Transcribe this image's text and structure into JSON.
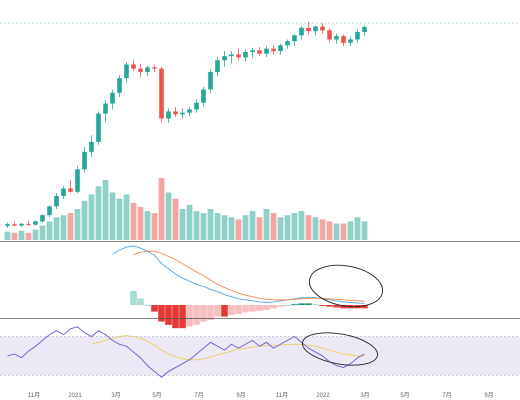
{
  "colors": {
    "up": "#26a69a",
    "down": "#ef5350",
    "vol_up": "#8fd0c8",
    "vol_down": "#f2a5a3",
    "macd_line": "#4fa8e0",
    "signal_line": "#f58a4b",
    "hist_pos_strong": "#1f8f7f",
    "hist_pos_weak": "#a6dcd3",
    "hist_neg_strong": "#e53935",
    "hist_neg_weak": "#f7c0bf",
    "rsi_line": "#6a5acd",
    "rsi_ma": "#f2c94c",
    "rsi_band": "#ece8f6",
    "annotation": "#222222",
    "pane_border": "#555555",
    "ref_dash": "#9fd0d8"
  },
  "chart_data": {
    "type": "candlestick",
    "x_labels": [
      "11月",
      "2021",
      "3月",
      "5月",
      "7月",
      "9月",
      "11月",
      "2022",
      "3月",
      "5月",
      "7月",
      "9月"
    ],
    "candles": [
      {
        "o": 100,
        "h": 108,
        "l": 95,
        "c": 104
      },
      {
        "o": 104,
        "h": 110,
        "l": 99,
        "c": 101
      },
      {
        "o": 101,
        "h": 107,
        "l": 97,
        "c": 105
      },
      {
        "o": 105,
        "h": 112,
        "l": 100,
        "c": 103
      },
      {
        "o": 103,
        "h": 113,
        "l": 101,
        "c": 111
      },
      {
        "o": 111,
        "h": 128,
        "l": 108,
        "c": 126
      },
      {
        "o": 126,
        "h": 150,
        "l": 122,
        "c": 147
      },
      {
        "o": 147,
        "h": 178,
        "l": 140,
        "c": 172
      },
      {
        "o": 172,
        "h": 196,
        "l": 165,
        "c": 190
      },
      {
        "o": 190,
        "h": 210,
        "l": 180,
        "c": 182
      },
      {
        "o": 182,
        "h": 244,
        "l": 178,
        "c": 236
      },
      {
        "o": 236,
        "h": 290,
        "l": 228,
        "c": 278
      },
      {
        "o": 278,
        "h": 318,
        "l": 266,
        "c": 302
      },
      {
        "o": 302,
        "h": 375,
        "l": 295,
        "c": 370
      },
      {
        "o": 370,
        "h": 402,
        "l": 350,
        "c": 394
      },
      {
        "o": 394,
        "h": 428,
        "l": 380,
        "c": 420
      },
      {
        "o": 420,
        "h": 462,
        "l": 410,
        "c": 455
      },
      {
        "o": 455,
        "h": 494,
        "l": 444,
        "c": 488
      },
      {
        "o": 488,
        "h": 500,
        "l": 472,
        "c": 478
      },
      {
        "o": 478,
        "h": 490,
        "l": 458,
        "c": 470
      },
      {
        "o": 470,
        "h": 485,
        "l": 460,
        "c": 481
      },
      {
        "o": 481,
        "h": 488,
        "l": 470,
        "c": 478
      },
      {
        "o": 478,
        "h": 482,
        "l": 350,
        "c": 358
      },
      {
        "o": 358,
        "h": 382,
        "l": 348,
        "c": 375
      },
      {
        "o": 375,
        "h": 386,
        "l": 362,
        "c": 368
      },
      {
        "o": 368,
        "h": 382,
        "l": 358,
        "c": 372
      },
      {
        "o": 372,
        "h": 386,
        "l": 364,
        "c": 380
      },
      {
        "o": 380,
        "h": 404,
        "l": 372,
        "c": 396
      },
      {
        "o": 396,
        "h": 434,
        "l": 388,
        "c": 428
      },
      {
        "o": 428,
        "h": 476,
        "l": 420,
        "c": 470
      },
      {
        "o": 470,
        "h": 506,
        "l": 460,
        "c": 498
      },
      {
        "o": 498,
        "h": 520,
        "l": 482,
        "c": 508
      },
      {
        "o": 508,
        "h": 520,
        "l": 490,
        "c": 512
      },
      {
        "o": 512,
        "h": 526,
        "l": 498,
        "c": 505
      },
      {
        "o": 505,
        "h": 524,
        "l": 495,
        "c": 518
      },
      {
        "o": 518,
        "h": 528,
        "l": 504,
        "c": 522
      },
      {
        "o": 522,
        "h": 530,
        "l": 508,
        "c": 514
      },
      {
        "o": 514,
        "h": 532,
        "l": 506,
        "c": 526
      },
      {
        "o": 526,
        "h": 534,
        "l": 512,
        "c": 520
      },
      {
        "o": 520,
        "h": 538,
        "l": 512,
        "c": 534
      },
      {
        "o": 534,
        "h": 548,
        "l": 526,
        "c": 544
      },
      {
        "o": 544,
        "h": 560,
        "l": 532,
        "c": 558
      },
      {
        "o": 558,
        "h": 580,
        "l": 548,
        "c": 576
      },
      {
        "o": 576,
        "h": 590,
        "l": 560,
        "c": 568
      },
      {
        "o": 568,
        "h": 582,
        "l": 558,
        "c": 579
      },
      {
        "o": 579,
        "h": 588,
        "l": 562,
        "c": 570
      },
      {
        "o": 570,
        "h": 575,
        "l": 540,
        "c": 548
      },
      {
        "o": 548,
        "h": 562,
        "l": 538,
        "c": 556
      },
      {
        "o": 556,
        "h": 560,
        "l": 532,
        "c": 540
      },
      {
        "o": 540,
        "h": 556,
        "l": 532,
        "c": 548
      },
      {
        "o": 548,
        "h": 572,
        "l": 540,
        "c": 566
      },
      {
        "o": 566,
        "h": 582,
        "l": 556,
        "c": 578
      }
    ],
    "volume": [
      8,
      7,
      9,
      7,
      10,
      14,
      18,
      22,
      24,
      26,
      30,
      38,
      44,
      52,
      58,
      46,
      40,
      44,
      36,
      32,
      28,
      26,
      60,
      46,
      40,
      30,
      34,
      28,
      26,
      30,
      26,
      24,
      22,
      20,
      24,
      28,
      22,
      30,
      26,
      22,
      24,
      26,
      28,
      24,
      22,
      20,
      18,
      16,
      16,
      18,
      22,
      18
    ],
    "macd": [
      -40,
      -38,
      -35,
      -32,
      -28,
      -20,
      -10,
      0,
      12,
      22,
      34,
      48,
      60,
      74,
      88,
      98,
      106,
      112,
      114,
      110,
      104,
      96,
      80,
      70,
      60,
      52,
      46,
      40,
      36,
      30,
      26,
      20,
      16,
      12,
      10,
      8,
      6,
      5,
      6,
      8,
      10,
      12,
      14,
      15,
      14,
      12,
      10,
      8,
      6,
      5,
      4,
      3
    ],
    "signal": [
      -42,
      -40,
      -38,
      -35,
      -32,
      -28,
      -22,
      -16,
      -8,
      2,
      12,
      22,
      34,
      46,
      58,
      70,
      80,
      90,
      97,
      102,
      104,
      104,
      100,
      94,
      88,
      80,
      72,
      64,
      56,
      48,
      40,
      34,
      28,
      23,
      19,
      16,
      13,
      11,
      10,
      10,
      10,
      11,
      12,
      13,
      13,
      13,
      12,
      11,
      10,
      9,
      8,
      7
    ],
    "rsi": [
      50,
      52,
      48,
      55,
      60,
      66,
      72,
      76,
      72,
      78,
      80,
      74,
      70,
      76,
      72,
      66,
      62,
      60,
      54,
      48,
      40,
      34,
      28,
      34,
      38,
      42,
      46,
      52,
      58,
      64,
      60,
      56,
      62,
      58,
      62,
      66,
      60,
      64,
      58,
      62,
      66,
      70,
      64,
      58,
      54,
      50,
      44,
      40,
      38,
      42,
      48,
      52
    ],
    "rsi_ma": [
      null,
      null,
      null,
      null,
      null,
      null,
      null,
      null,
      null,
      null,
      null,
      null,
      62,
      64,
      66,
      68,
      70,
      71,
      70,
      68,
      65,
      61,
      56,
      52,
      49,
      47,
      46,
      46,
      47,
      49,
      51,
      53,
      55,
      57,
      58,
      59,
      60,
      61,
      61,
      61,
      62,
      62,
      62,
      61,
      60,
      58,
      56,
      54,
      52,
      51,
      50,
      50
    ]
  }
}
